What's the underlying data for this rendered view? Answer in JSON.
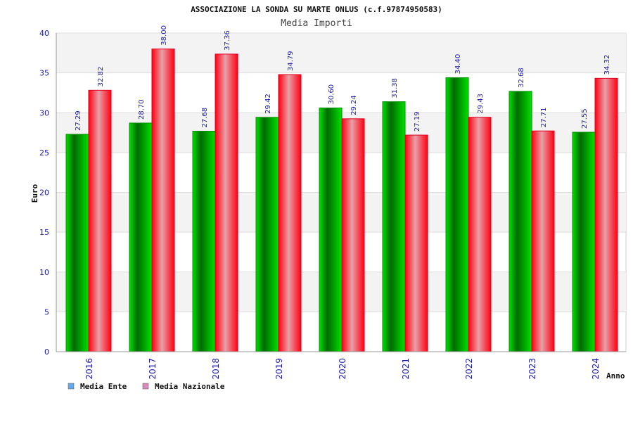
{
  "chart_data": {
    "type": "bar",
    "title": "ASSOCIAZIONE LA SONDA SU MARTE ONLUS (c.f.97874950583)",
    "subtitle": "Media Importi",
    "xlabel": "Anno",
    "ylabel": "Euro",
    "ylim": [
      0,
      40
    ],
    "yticks": [
      0,
      5,
      10,
      15,
      20,
      25,
      30,
      35,
      40
    ],
    "categories": [
      "2016",
      "2017",
      "2018",
      "2019",
      "2020",
      "2021",
      "2022",
      "2023",
      "2024"
    ],
    "series": [
      {
        "name": "Media Ente",
        "color": "#00c000",
        "legend_color": "#66aaee",
        "values": [
          27.29,
          28.7,
          27.68,
          29.42,
          30.6,
          31.38,
          34.4,
          32.68,
          27.55
        ],
        "labels": [
          "27.29",
          "28.70",
          "27.68",
          "29.42",
          "30.60",
          "31.38",
          "34.40",
          "32.68",
          "27.55"
        ]
      },
      {
        "name": "Media Nazionale",
        "color": "#ff1020",
        "legend_color": "#dd88bb",
        "values": [
          32.82,
          38.0,
          37.36,
          34.79,
          29.24,
          27.19,
          29.43,
          27.71,
          34.32
        ],
        "labels": [
          "32.82",
          "38.00",
          "37.36",
          "34.79",
          "29.24",
          "27.19",
          "29.43",
          "27.71",
          "34.32"
        ]
      }
    ],
    "grid": true,
    "legend_position": "bottom-left"
  }
}
